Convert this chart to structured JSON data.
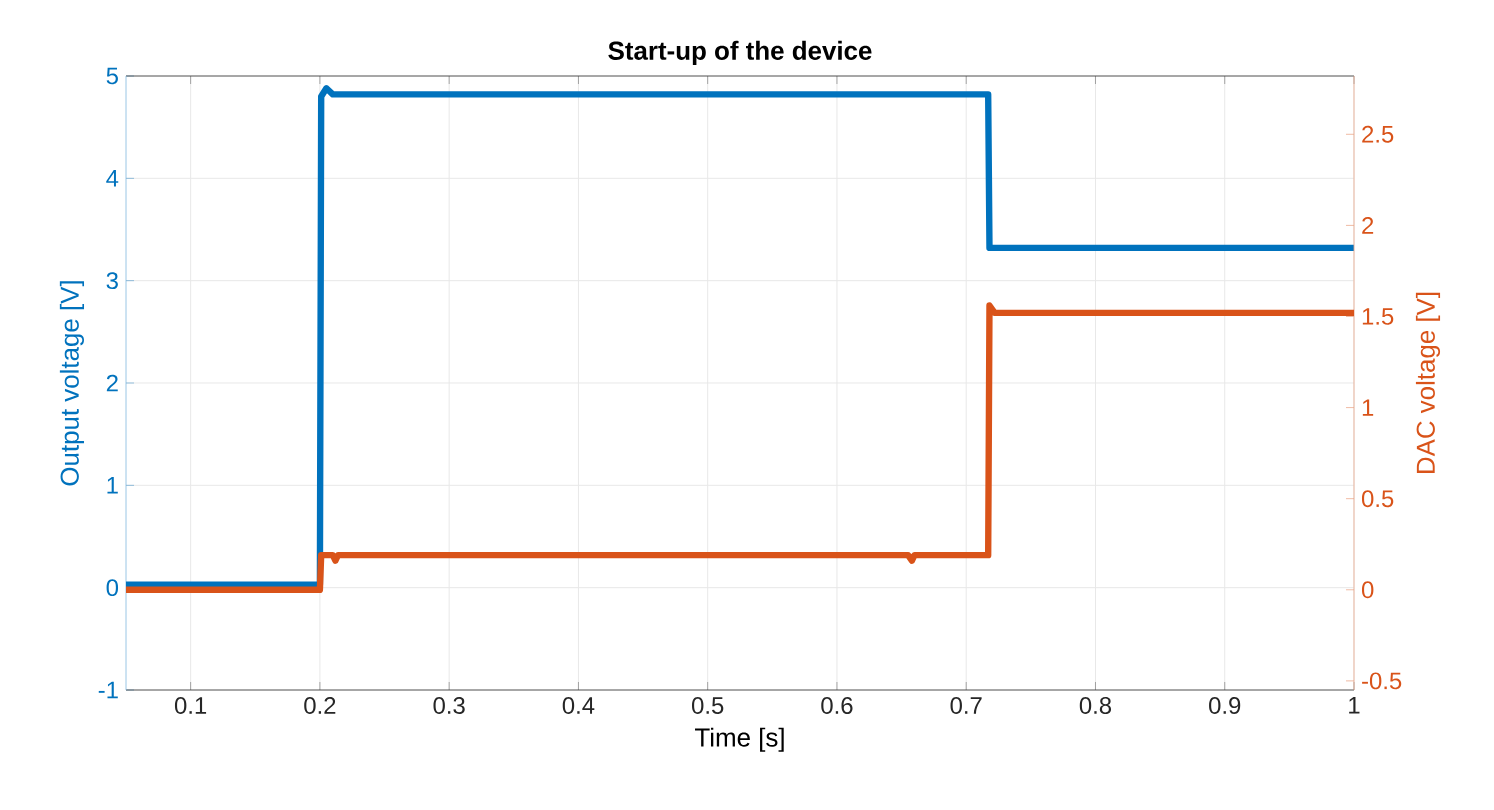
{
  "chart_data": {
    "type": "line",
    "title": "Start-up of the device",
    "xlabel": "Time [s]",
    "ylabel": "Output voltage [V]",
    "y2label": "DAC voltage [V]",
    "xlim": [
      0.05,
      1
    ],
    "xticks": [
      0.1,
      0.2,
      0.3,
      0.4,
      0.5,
      0.6,
      0.7,
      0.8,
      0.9,
      1
    ],
    "ylim": [
      -1,
      5
    ],
    "yticks": [
      -1,
      0,
      1,
      2,
      3,
      4,
      5
    ],
    "y2lim": [
      -0.55,
      2.82
    ],
    "y2ticks": [
      -0.5,
      0,
      0.5,
      1,
      1.5,
      2,
      2.5
    ],
    "grid": true,
    "line_style": "solid",
    "series": [
      {
        "color": "#0072bd",
        "x": [
          0.05,
          0.1,
          0.2,
          0.201,
          0.205,
          0.21,
          0.3,
          0.4,
          0.5,
          0.6,
          0.7,
          0.717,
          0.718,
          0.72,
          0.8,
          0.9,
          1
        ],
        "values": [
          0.03,
          0.03,
          0.03,
          4.8,
          4.88,
          4.82,
          4.82,
          4.82,
          4.82,
          4.82,
          4.82,
          4.82,
          3.32,
          3.32,
          3.32,
          3.32,
          3.32
        ]
      },
      {
        "color": "#d95319",
        "axis": "y2",
        "x": [
          0.05,
          0.1,
          0.2,
          0.201,
          0.21,
          0.212,
          0.214,
          0.25,
          0.3,
          0.4,
          0.5,
          0.6,
          0.655,
          0.658,
          0.66,
          0.7,
          0.717,
          0.718,
          0.722,
          0.75,
          0.8,
          0.9,
          1
        ],
        "values": [
          0,
          0,
          0,
          0.19,
          0.19,
          0.16,
          0.19,
          0.19,
          0.19,
          0.19,
          0.19,
          0.19,
          0.19,
          0.16,
          0.19,
          0.19,
          0.19,
          1.56,
          1.52,
          1.52,
          1.52,
          1.52,
          1.52
        ]
      }
    ]
  }
}
